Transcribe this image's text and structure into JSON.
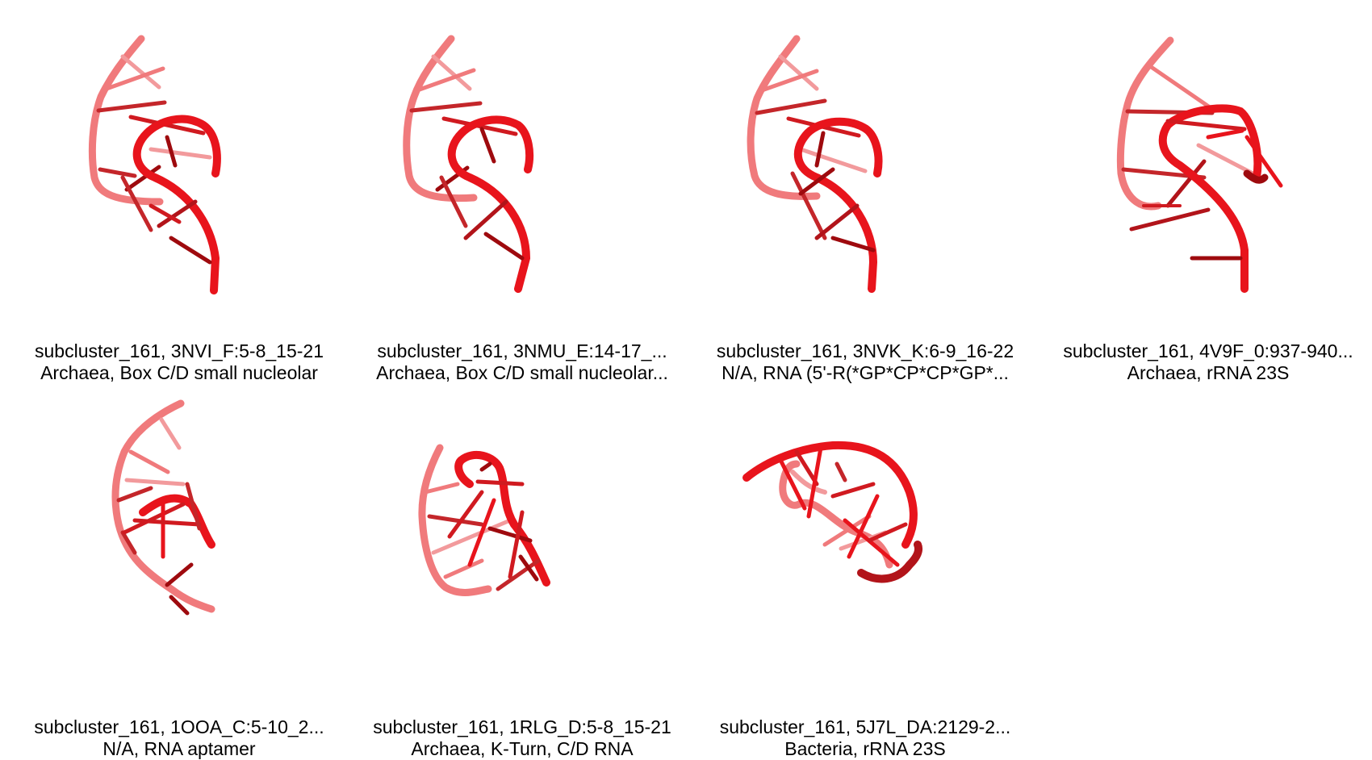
{
  "colors": {
    "backbone_front": "#e8141c",
    "backbone_back": "#f07a7c",
    "base_dark": "#9e0a0e",
    "base_mid": "#d01a20",
    "base_light": "#f29a9c",
    "background": "#ffffff"
  },
  "panels": [
    {
      "title": "subcluster_161, 3NVI_F:5-8_15-21",
      "subtitle": "Archaea, Box C/D small nucleolar",
      "structure": "rna-kink-turn-cartoon"
    },
    {
      "title": "subcluster_161, 3NMU_E:14-17_...",
      "subtitle": "Archaea, Box C/D small nucleolar...",
      "structure": "rna-kink-turn-cartoon"
    },
    {
      "title": "subcluster_161, 3NVK_K:6-9_16-22",
      "subtitle": "N/A, RNA (5'-R(*GP*CP*CP*GP*...",
      "structure": "rna-kink-turn-cartoon"
    },
    {
      "title": "subcluster_161, 4V9F_0:937-940...",
      "subtitle": "Archaea, rRNA 23S",
      "structure": "rna-kink-turn-cartoon"
    },
    {
      "title": "subcluster_161, 1OOA_C:5-10_2...",
      "subtitle": "N/A, RNA aptamer",
      "structure": "rna-kink-turn-cartoon"
    },
    {
      "title": "subcluster_161, 1RLG_D:5-8_15-21",
      "subtitle": "Archaea, K-Turn, C/D RNA",
      "structure": "rna-kink-turn-cartoon"
    },
    {
      "title": "subcluster_161, 5J7L_DA:2129-2...",
      "subtitle": "Bacteria, rRNA 23S",
      "structure": "rna-kink-turn-cartoon"
    }
  ]
}
